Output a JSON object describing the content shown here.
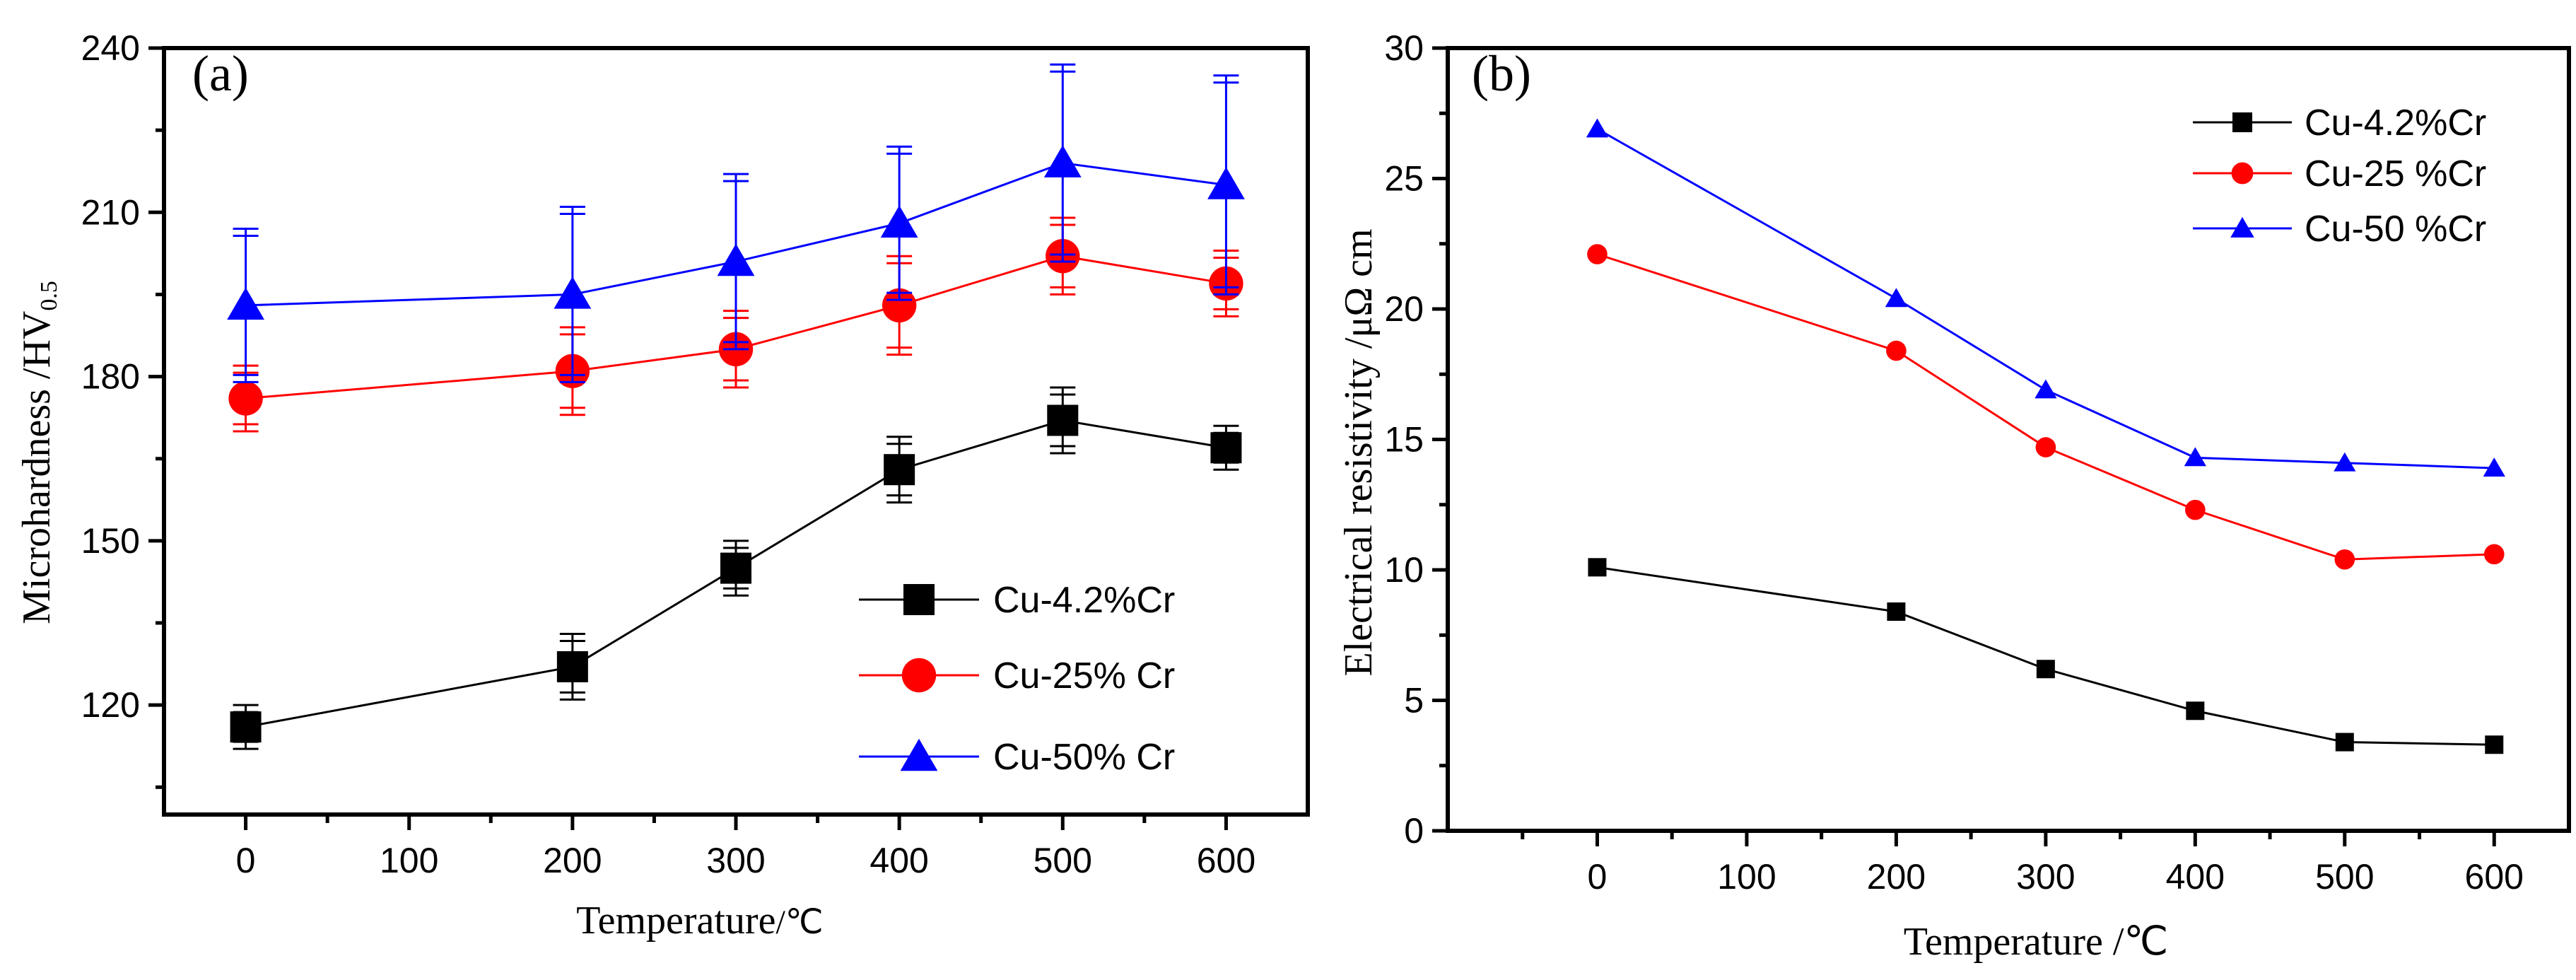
{
  "colors": {
    "cu42": "#000000",
    "cu25": "#ff0000",
    "cu50": "#0000ff"
  },
  "chart_data": [
    {
      "type": "line",
      "panel_label": "(a)",
      "xlabel": "Temperature",
      "xlabel_unit": "/℃",
      "ylabel": "Microhardness /HV",
      "ylabel_sub": "0.5",
      "xlim": [
        -50,
        650
      ],
      "ylim": [
        100,
        240
      ],
      "xticks": [
        0,
        100,
        200,
        300,
        400,
        500,
        600
      ],
      "yticks": [
        120,
        150,
        180,
        210,
        240
      ],
      "x": [
        0,
        200,
        300,
        400,
        500,
        600
      ],
      "series": [
        {
          "name": "Cu-4.2%Cr",
          "marker": "square",
          "color": "#000000",
          "values": [
            116,
            127,
            145,
            163,
            172,
            167
          ],
          "errors": [
            4,
            6,
            5,
            6,
            6,
            4
          ]
        },
        {
          "name": "Cu-25% Cr",
          "marker": "circle",
          "color": "#ff0000",
          "values": [
            176,
            181,
            185,
            193,
            202,
            197
          ],
          "errors": [
            6,
            8,
            7,
            9,
            7,
            6
          ]
        },
        {
          "name": "Cu-50% Cr",
          "marker": "triangle",
          "color": "#0000ff",
          "values": [
            193,
            195,
            201,
            208,
            219,
            215
          ],
          "errors": [
            14,
            16,
            16,
            14,
            18,
            20
          ]
        }
      ],
      "legend_position": "bottom-right"
    },
    {
      "type": "line",
      "panel_label": "(b)",
      "xlabel": "Temperature /℃",
      "ylabel": "Electrical resistivity /μΩ cm",
      "xlim": [
        -100,
        650
      ],
      "ylim": [
        0,
        30
      ],
      "xticks": [
        0,
        100,
        200,
        300,
        400,
        500,
        600
      ],
      "yticks": [
        0,
        5,
        10,
        15,
        20,
        25,
        30
      ],
      "x": [
        0,
        200,
        300,
        400,
        500,
        600
      ],
      "series": [
        {
          "name": "Cu-4.2%Cr",
          "marker": "square",
          "color": "#000000",
          "values": [
            10.1,
            8.4,
            6.2,
            4.6,
            3.4,
            3.3
          ]
        },
        {
          "name": "Cu-25 %Cr",
          "marker": "circle",
          "color": "#ff0000",
          "values": [
            22.1,
            18.4,
            14.7,
            12.3,
            10.4,
            10.6
          ]
        },
        {
          "name": "Cu-50 %Cr",
          "marker": "triangle",
          "color": "#0000ff",
          "values": [
            26.9,
            20.4,
            16.9,
            14.3,
            14.1,
            13.9
          ]
        }
      ],
      "legend_position": "top-right"
    }
  ]
}
